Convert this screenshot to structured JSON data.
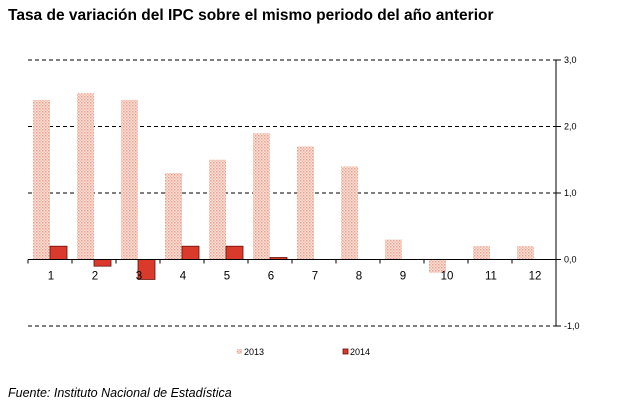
{
  "chart_data": {
    "type": "bar",
    "title": "Tasa de variación del IPC sobre el mismo periodo del año anterior",
    "categories": [
      "1",
      "2",
      "3",
      "4",
      "5",
      "6",
      "7",
      "8",
      "9",
      "10",
      "11",
      "12"
    ],
    "series": [
      {
        "name": "2013",
        "values": [
          2.4,
          2.5,
          2.4,
          1.3,
          1.5,
          1.9,
          1.7,
          1.4,
          0.3,
          -0.2,
          0.2,
          0.2
        ],
        "color": "#f2b8a8"
      },
      {
        "name": "2014",
        "values": [
          0.2,
          -0.1,
          -0.3,
          0.2,
          0.2,
          0.03,
          null,
          null,
          null,
          null,
          null,
          null
        ],
        "color": "#d93a2b"
      }
    ],
    "ylim": [
      -1.0,
      3.0
    ],
    "yticks": [
      "3,0",
      "2,0",
      "1,0",
      "0,0",
      "-1,0"
    ],
    "ytick_values": [
      3,
      2,
      1,
      0,
      -1
    ],
    "y_axis_side": "right",
    "grid": "dashed horizontal",
    "legend_position": "bottom"
  },
  "source": "Fuente: Instituto Nacional de Estadística"
}
